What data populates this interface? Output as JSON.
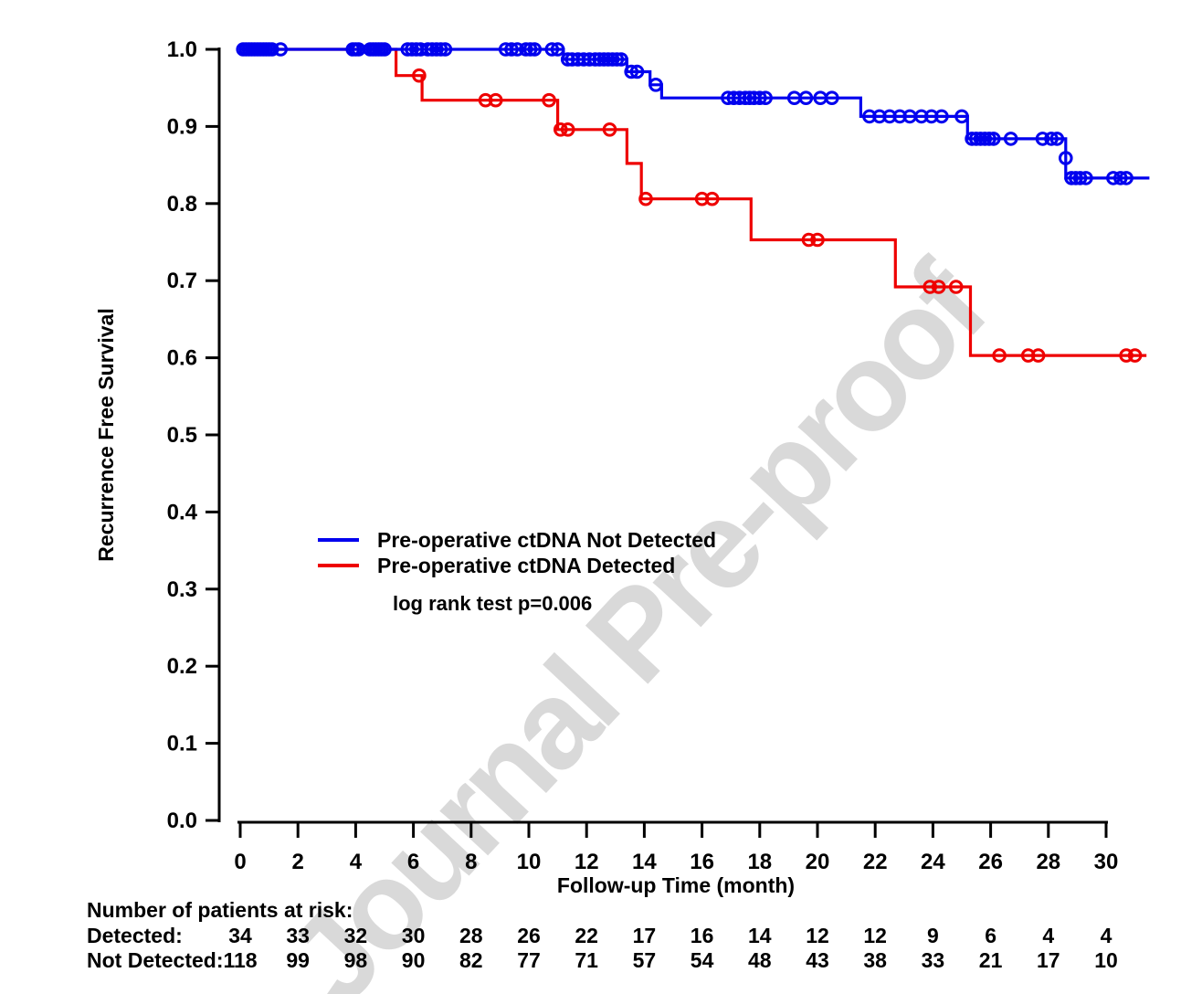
{
  "figure": {
    "watermark": "Journal Pre-proof",
    "x_axis": {
      "label": "Follow-up Time (month)",
      "ticks": [
        0,
        2,
        4,
        6,
        8,
        10,
        12,
        14,
        16,
        18,
        20,
        22,
        24,
        26,
        28,
        30
      ]
    },
    "y_axis": {
      "label": "Recurrence Free Survival",
      "ticks": [
        "0.0",
        "0.1",
        "0.2",
        "0.3",
        "0.4",
        "0.5",
        "0.6",
        "0.7",
        "0.8",
        "0.9",
        "1.0"
      ]
    },
    "legend": [
      {
        "label": "Pre-operative ctDNA Not Detected",
        "color": "#0000ee"
      },
      {
        "label": "Pre-operative ctDNA Detected",
        "color": "#ee0000"
      }
    ],
    "annotation": "log rank test p=0.006",
    "risk_table": {
      "title": "Number of patients at risk:",
      "times": [
        0,
        2,
        4,
        6,
        8,
        10,
        12,
        14,
        16,
        18,
        20,
        22,
        24,
        26,
        28,
        30
      ],
      "rows": [
        {
          "label": "Detected:",
          "values": [
            34,
            33,
            32,
            30,
            28,
            26,
            22,
            17,
            16,
            14,
            12,
            12,
            9,
            6,
            4,
            4
          ]
        },
        {
          "label": "Not Detected:",
          "values": [
            118,
            99,
            98,
            90,
            82,
            77,
            71,
            57,
            54,
            48,
            43,
            38,
            33,
            21,
            17,
            10
          ]
        }
      ]
    }
  },
  "chart_data": {
    "type": "line",
    "subtype": "kaplan-meier-step",
    "title": "",
    "xlabel": "Follow-up Time (month)",
    "ylabel": "Recurrence Free Survival",
    "xlim": [
      0,
      31.5
    ],
    "ylim": [
      0.0,
      1.0
    ],
    "grid": false,
    "legend_position": "inside-left-middle",
    "annotation": "log rank test p=0.006",
    "series": [
      {
        "name": "Pre-operative ctDNA Not Detected",
        "color": "#0000ee",
        "start": 1.0,
        "end_time": 31.5,
        "drops": [
          [
            11.2,
            0.987
          ],
          [
            13.4,
            0.971
          ],
          [
            14.2,
            0.954
          ],
          [
            14.6,
            0.937
          ],
          [
            21.5,
            0.913
          ],
          [
            25.2,
            0.884
          ],
          [
            28.6,
            0.833
          ]
        ],
        "censors": [
          [
            0.1,
            1.0
          ],
          [
            0.2,
            1.0
          ],
          [
            0.3,
            1.0
          ],
          [
            0.4,
            1.0
          ],
          [
            0.5,
            1.0
          ],
          [
            0.6,
            1.0
          ],
          [
            0.7,
            1.0
          ],
          [
            0.8,
            1.0
          ],
          [
            0.9,
            1.0
          ],
          [
            1.0,
            1.0
          ],
          [
            1.1,
            1.0
          ],
          [
            1.4,
            1.0
          ],
          [
            3.9,
            1.0
          ],
          [
            4.0,
            1.0
          ],
          [
            4.1,
            1.0
          ],
          [
            4.5,
            1.0
          ],
          [
            4.6,
            1.0
          ],
          [
            4.7,
            1.0
          ],
          [
            4.8,
            1.0
          ],
          [
            4.9,
            1.0
          ],
          [
            5.0,
            1.0
          ],
          [
            5.8,
            1.0
          ],
          [
            5.95,
            1.0
          ],
          [
            6.1,
            1.0
          ],
          [
            6.25,
            1.0
          ],
          [
            6.5,
            1.0
          ],
          [
            6.65,
            1.0
          ],
          [
            6.8,
            1.0
          ],
          [
            6.95,
            1.0
          ],
          [
            7.1,
            1.0
          ],
          [
            9.2,
            1.0
          ],
          [
            9.4,
            1.0
          ],
          [
            9.6,
            1.0
          ],
          [
            9.9,
            1.0
          ],
          [
            10.05,
            1.0
          ],
          [
            10.2,
            1.0
          ],
          [
            10.8,
            1.0
          ],
          [
            11.0,
            1.0
          ],
          [
            11.35,
            0.987
          ],
          [
            11.5,
            0.987
          ],
          [
            11.7,
            0.987
          ],
          [
            11.9,
            0.987
          ],
          [
            12.1,
            0.987
          ],
          [
            12.3,
            0.987
          ],
          [
            12.45,
            0.987
          ],
          [
            12.6,
            0.987
          ],
          [
            12.75,
            0.987
          ],
          [
            12.9,
            0.987
          ],
          [
            13.05,
            0.987
          ],
          [
            13.2,
            0.987
          ],
          [
            13.55,
            0.971
          ],
          [
            13.75,
            0.971
          ],
          [
            14.4,
            0.954
          ],
          [
            16.9,
            0.937
          ],
          [
            17.1,
            0.937
          ],
          [
            17.3,
            0.937
          ],
          [
            17.5,
            0.937
          ],
          [
            17.65,
            0.937
          ],
          [
            17.8,
            0.937
          ],
          [
            18.0,
            0.937
          ],
          [
            18.2,
            0.937
          ],
          [
            19.2,
            0.937
          ],
          [
            19.6,
            0.937
          ],
          [
            20.1,
            0.937
          ],
          [
            20.5,
            0.937
          ],
          [
            21.8,
            0.913
          ],
          [
            22.15,
            0.913
          ],
          [
            22.5,
            0.913
          ],
          [
            22.85,
            0.913
          ],
          [
            23.2,
            0.913
          ],
          [
            23.6,
            0.913
          ],
          [
            23.95,
            0.913
          ],
          [
            24.3,
            0.913
          ],
          [
            25.0,
            0.913
          ],
          [
            25.35,
            0.884
          ],
          [
            25.5,
            0.884
          ],
          [
            25.65,
            0.884
          ],
          [
            25.8,
            0.884
          ],
          [
            25.95,
            0.884
          ],
          [
            26.1,
            0.884
          ],
          [
            26.7,
            0.884
          ],
          [
            27.8,
            0.884
          ],
          [
            28.1,
            0.884
          ],
          [
            28.3,
            0.884
          ],
          [
            28.6,
            0.859
          ],
          [
            28.8,
            0.833
          ],
          [
            28.95,
            0.833
          ],
          [
            29.1,
            0.833
          ],
          [
            29.3,
            0.833
          ],
          [
            30.25,
            0.833
          ],
          [
            30.5,
            0.833
          ],
          [
            30.7,
            0.833
          ]
        ]
      },
      {
        "name": "Pre-operative ctDNA Detected",
        "color": "#ee0000",
        "start": 1.0,
        "end_time": 31.4,
        "drops": [
          [
            5.4,
            0.966
          ],
          [
            6.3,
            0.934
          ],
          [
            11.0,
            0.896
          ],
          [
            13.4,
            0.852
          ],
          [
            13.9,
            0.806
          ],
          [
            17.7,
            0.753
          ],
          [
            22.7,
            0.692
          ],
          [
            25.3,
            0.603
          ]
        ],
        "censors": [
          [
            6.2,
            0.966
          ],
          [
            8.5,
            0.934
          ],
          [
            8.85,
            0.934
          ],
          [
            10.7,
            0.934
          ],
          [
            11.1,
            0.896
          ],
          [
            11.35,
            0.896
          ],
          [
            12.8,
            0.896
          ],
          [
            14.05,
            0.806
          ],
          [
            16.0,
            0.806
          ],
          [
            16.35,
            0.806
          ],
          [
            19.7,
            0.753
          ],
          [
            20.0,
            0.753
          ],
          [
            23.9,
            0.692
          ],
          [
            24.2,
            0.692
          ],
          [
            24.8,
            0.692
          ],
          [
            26.3,
            0.603
          ],
          [
            27.3,
            0.603
          ],
          [
            27.65,
            0.603
          ],
          [
            30.7,
            0.603
          ],
          [
            31.0,
            0.603
          ]
        ]
      }
    ]
  }
}
